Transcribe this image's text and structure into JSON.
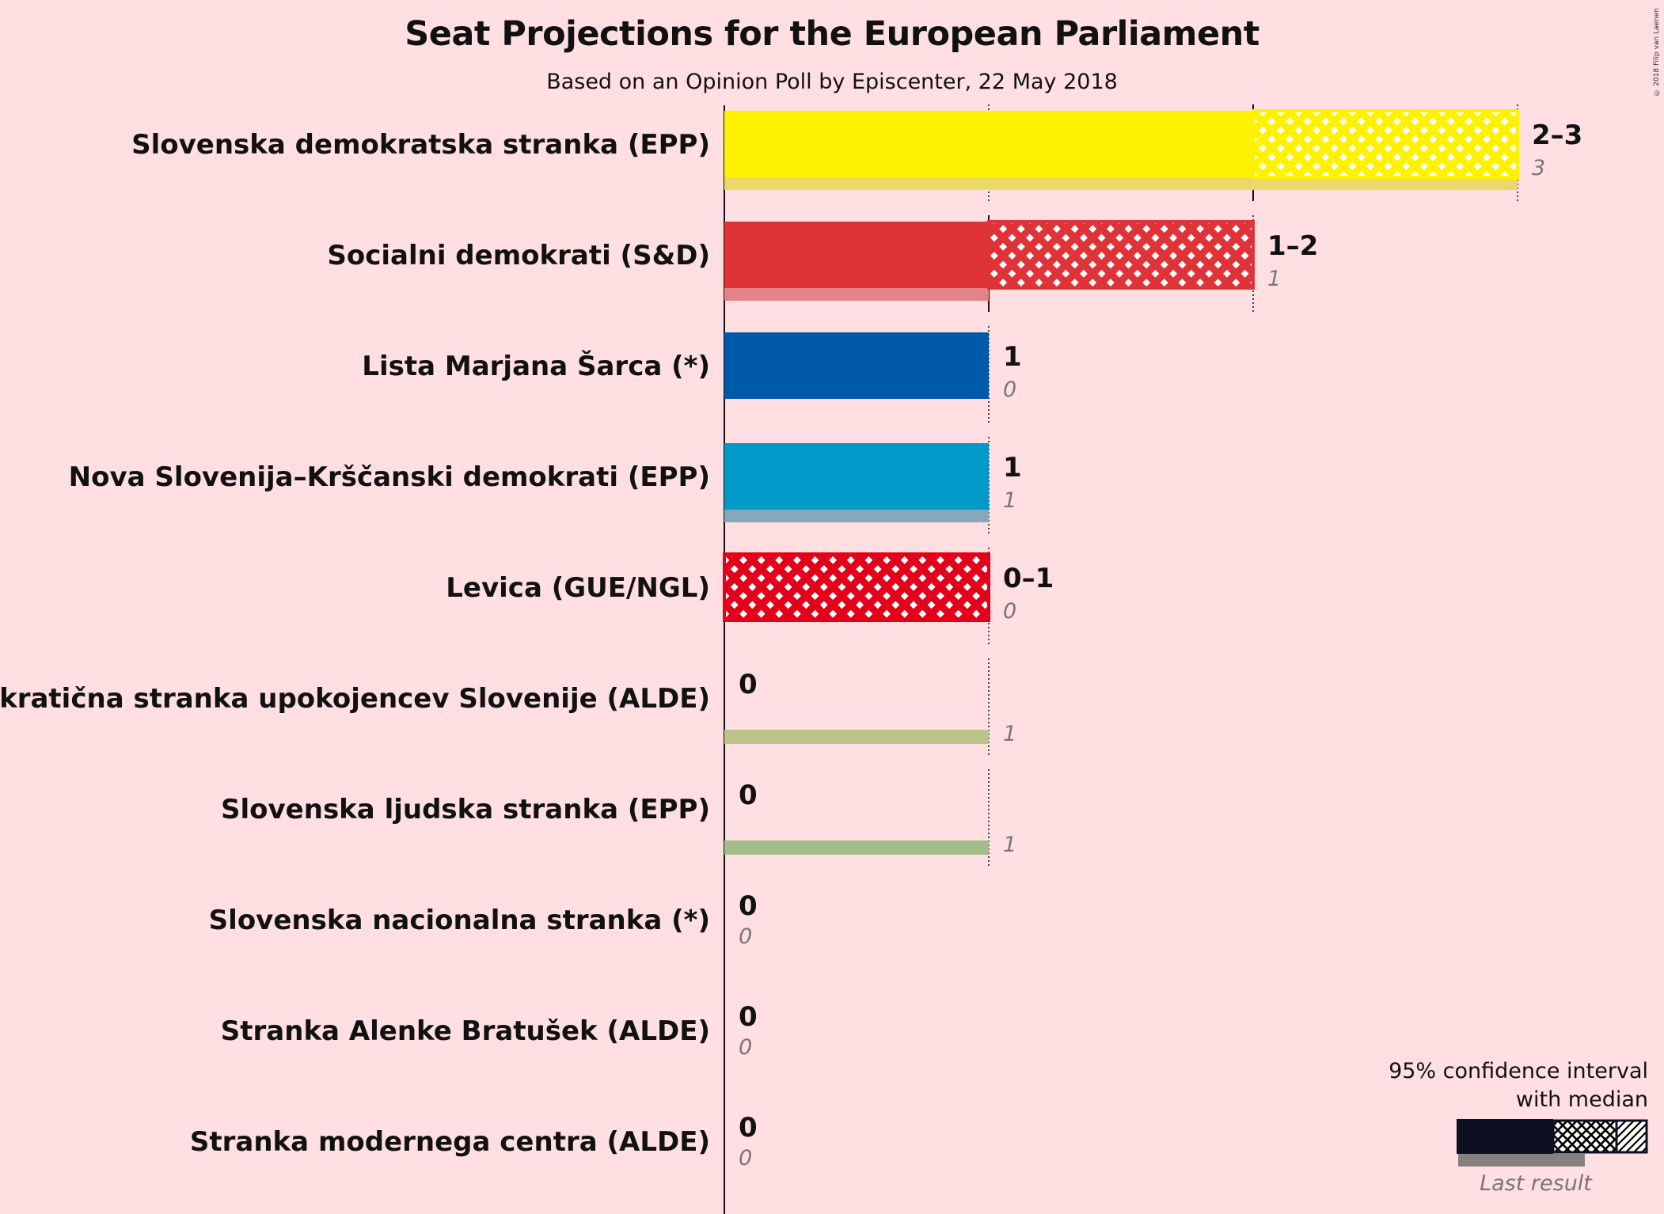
{
  "title": "Seat Projections for the European Parliament",
  "subtitle": "Based on an Opinion Poll by Episcenter, 22 May 2018",
  "copyright": "© 2018 Filip van Laenen",
  "legend": {
    "line1": "95% confidence interval",
    "line2": "with median",
    "last_result": "Last result"
  },
  "chart_data": {
    "type": "bar",
    "orientation": "horizontal",
    "xlim": [
      0,
      3
    ],
    "categories": [
      "Slovenska demokratska stranka (EPP)",
      "Socialni demokrati (S&D)",
      "Lista Marjana Šarca (*)",
      "Nova Slovenija–Krščanski demokrati (EPP)",
      "Levica (GUE/NGL)",
      "Demokratična stranka upokojencev Slovenije (ALDE)",
      "Slovenska ljudska stranka (EPP)",
      "Slovenska nacionalna stranka (*)",
      "Stranka Alenke Bratušek (ALDE)",
      "Stranka modernega centra (ALDE)"
    ],
    "series": [
      {
        "name": "95% confidence interval",
        "ci_low": [
          2,
          1,
          1,
          1,
          0,
          0,
          0,
          0,
          0,
          0
        ],
        "ci_high": [
          3,
          2,
          1,
          1,
          1,
          0,
          0,
          0,
          0,
          0
        ],
        "median": [
          2,
          1,
          1,
          1,
          0,
          0,
          0,
          0,
          0,
          0
        ]
      },
      {
        "name": "Last result",
        "values": [
          3,
          1,
          0,
          1,
          0,
          1,
          1,
          0,
          0,
          0
        ]
      }
    ],
    "range_labels": [
      "2–3",
      "1–2",
      "1",
      "1",
      "0–1",
      "0",
      "0",
      "0",
      "0",
      "0"
    ],
    "last_labels": [
      "3",
      "1",
      "0",
      "1",
      "0",
      "1",
      "1",
      "0",
      "0",
      "0"
    ],
    "colors": [
      "#fff200",
      "#e03338",
      "#005aaa",
      "#0099c8",
      "#e2001a",
      "#b5c66a",
      "#8fba6a",
      "#333333",
      "#333333",
      "#333333"
    ],
    "last_colors": [
      "#e8d96a",
      "#e58488",
      "#0058a8",
      "#85a9ba",
      "#e2001a",
      "#bcc48c",
      "#a3bd8a",
      "#999999",
      "#999999",
      "#999999"
    ]
  }
}
